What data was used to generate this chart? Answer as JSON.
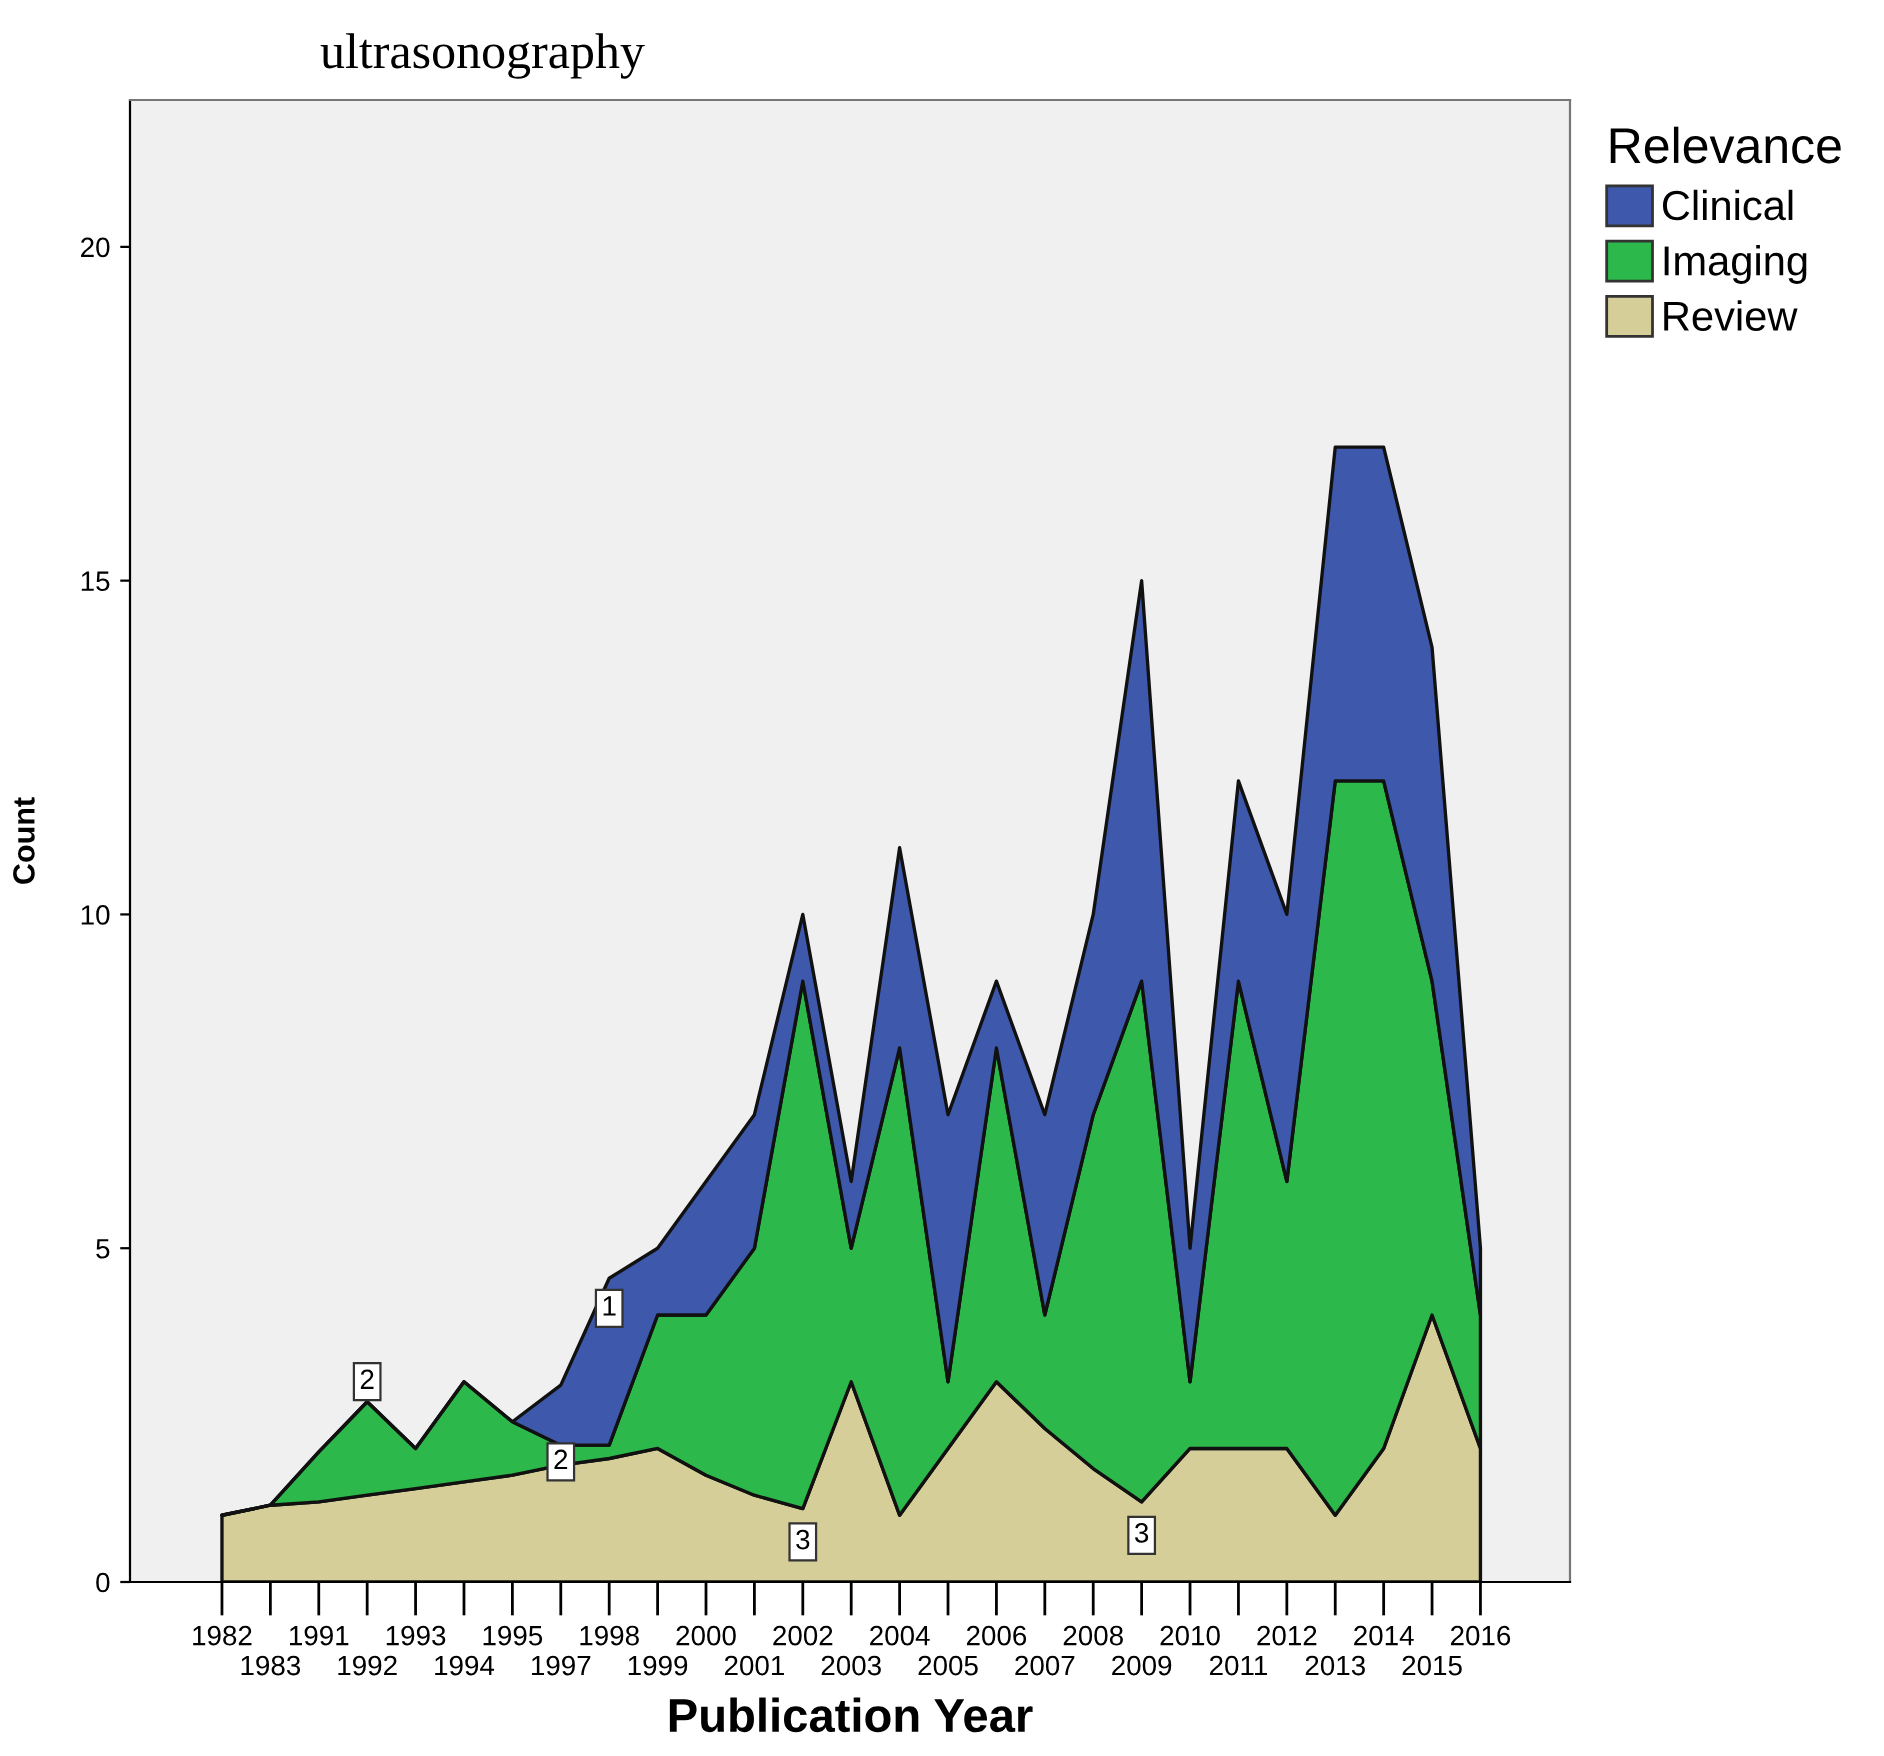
{
  "chart_data": {
    "type": "area",
    "stacked": true,
    "title": "ultrasonography",
    "xlabel": "Publication Year",
    "ylabel": "Count",
    "legend_title": "Relevance",
    "legend": "right",
    "grid": false,
    "categories": [
      "1982",
      "1983",
      "1991",
      "1992",
      "1993",
      "1994",
      "1995",
      "1997",
      "1998",
      "1999",
      "2000",
      "2001",
      "2002",
      "2003",
      "2004",
      "2005",
      "2006",
      "2007",
      "2008",
      "2009",
      "2010",
      "2011",
      "2012",
      "2013",
      "2014",
      "2015",
      "2016"
    ],
    "ylim": [
      0,
      22.2
    ],
    "yticks": [
      0,
      5,
      10,
      15,
      20
    ],
    "series": [
      {
        "name": "Review",
        "color": "#d5ce98",
        "values": [
          1,
          1.15,
          1.2,
          1.3,
          1.4,
          1.5,
          1.6,
          1.75,
          1.85,
          2,
          1.6,
          1.3,
          1.1,
          3,
          1,
          2,
          3,
          2.3,
          1.7,
          1.2,
          2,
          2,
          2,
          1,
          2,
          4,
          2
        ]
      },
      {
        "name": "Imaging",
        "color": "#2db84b",
        "values": [
          0,
          0,
          0.75,
          1.4,
          0.6,
          1.5,
          0.8,
          0.3,
          0.2,
          2,
          2.4,
          3.7,
          7.9,
          2,
          7,
          1,
          5,
          1.7,
          5.3,
          7.8,
          1,
          7,
          4,
          11,
          10,
          5,
          2
        ]
      },
      {
        "name": "Clinical",
        "color": "#3e58ac",
        "values": [
          0,
          0,
          0,
          0,
          0,
          0,
          0,
          0.9,
          2.5,
          1,
          2,
          2,
          1,
          1,
          3,
          4,
          1,
          3,
          3,
          6,
          2,
          3,
          4,
          5,
          5,
          5,
          1
        ]
      }
    ],
    "annotations": [
      {
        "text": "2",
        "x": "1992",
        "y": 3.0
      },
      {
        "text": "2",
        "x": "1997",
        "y": 1.8
      },
      {
        "text": "1",
        "x": "1998",
        "y": 4.1
      },
      {
        "text": "3",
        "x": "2002",
        "y": 0.6
      },
      {
        "text": "3",
        "x": "2009",
        "y": 0.7
      }
    ]
  }
}
